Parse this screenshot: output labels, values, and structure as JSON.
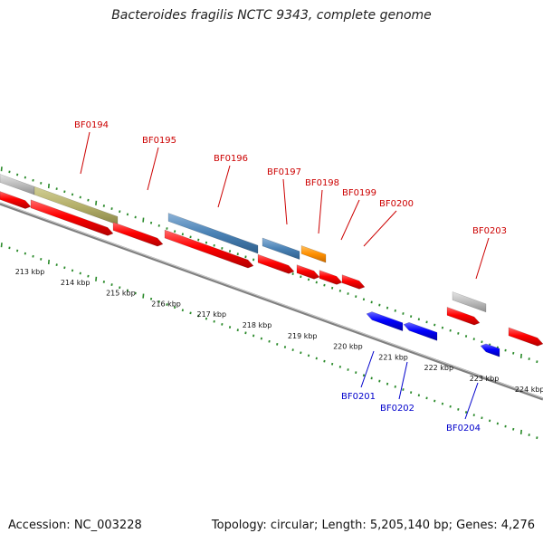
{
  "title": "Bacteroides fragilis NCTC 9343, complete genome",
  "footer": {
    "accession": "Accession: NC_003228",
    "summary": "Topology: circular; Length: 5,205,140 bp; Genes: 4,276"
  },
  "colors": {
    "forward_label": "#cc0000",
    "reverse_label": "#0000cc",
    "backbone": "#808080",
    "tick": "#2a8a2a"
  },
  "tick_labels": [
    "213 kbp",
    "214 kbp",
    "215 kbp",
    "216 kbp",
    "217 kbp",
    "218 kbp",
    "219 kbp",
    "220 kbp",
    "221 kbp",
    "222 kbp",
    "223 kbp",
    "224 kbp"
  ],
  "gene_labels": [
    {
      "id": "BF0194",
      "strand": "forward"
    },
    {
      "id": "BF0195",
      "strand": "forward"
    },
    {
      "id": "BF0196",
      "strand": "forward"
    },
    {
      "id": "BF0197",
      "strand": "forward"
    },
    {
      "id": "BF0198",
      "strand": "forward"
    },
    {
      "id": "BF0199",
      "strand": "forward"
    },
    {
      "id": "BF0200",
      "strand": "forward"
    },
    {
      "id": "BF0203",
      "strand": "forward"
    },
    {
      "id": "BF0201",
      "strand": "reverse"
    },
    {
      "id": "BF0202",
      "strand": "reverse"
    },
    {
      "id": "BF0204",
      "strand": "reverse"
    }
  ]
}
